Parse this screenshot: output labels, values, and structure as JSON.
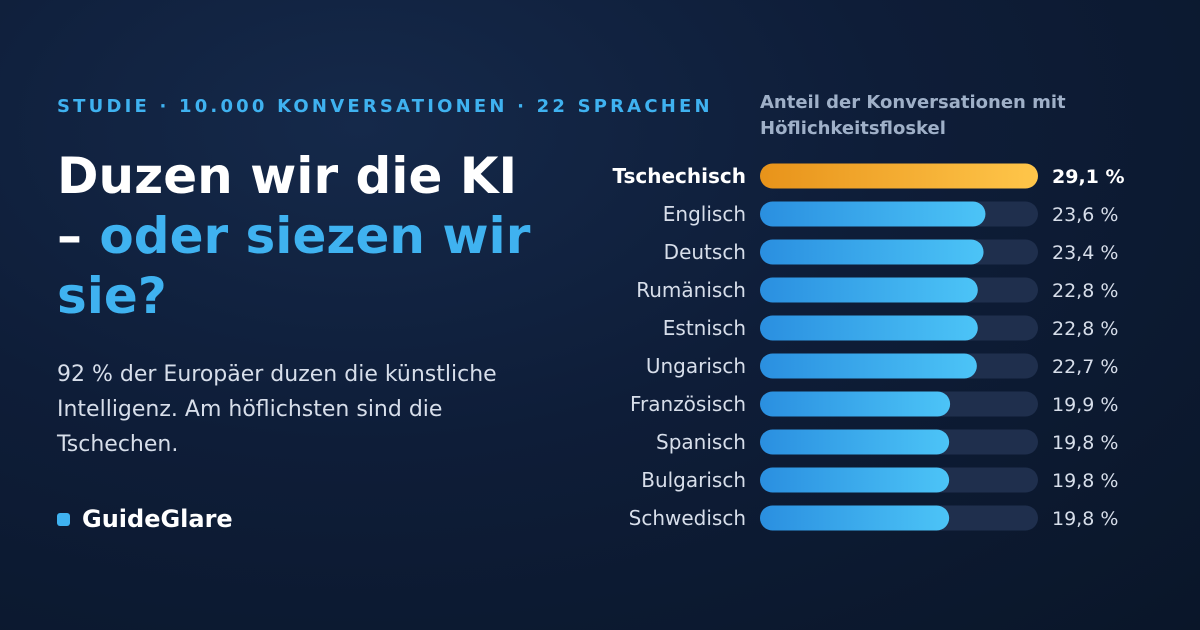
{
  "eyebrow": "STUDIE · 10.000 KONVERSATIONEN · 22 SPRACHEN",
  "headline": {
    "line1": "Duzen wir die KI",
    "dash": "– ",
    "accent": "oder siezen wir sie?"
  },
  "description": "92 % der Europäer duzen die künstliche Intelligenz. Am höflichsten sind die Tschechen.",
  "brand": {
    "name": "GuideGlare"
  },
  "colors": {
    "accent": "#3fb2f0",
    "bar_blue_start": "#2a8fe0",
    "bar_blue_end": "#4cc4f7",
    "bar_top_start": "#e8931a",
    "bar_top_end": "#ffc64a",
    "track": "#1f2f4d"
  },
  "chart_data": {
    "type": "bar",
    "orientation": "horizontal",
    "title": "Anteil der Konversationen mit Höflichkeitsfloskel",
    "categories": [
      "Tschechisch",
      "Englisch",
      "Deutsch",
      "Rumänisch",
      "Estnisch",
      "Ungarisch",
      "Französisch",
      "Spanisch",
      "Bulgarisch",
      "Schwedisch"
    ],
    "values": [
      29.1,
      23.6,
      23.4,
      22.8,
      22.8,
      22.7,
      19.9,
      19.8,
      19.8,
      19.8
    ],
    "value_labels": [
      "29,1 %",
      "23,6 %",
      "23,4 %",
      "22,8 %",
      "22,8 %",
      "22,7 %",
      "19,9 %",
      "19,8 %",
      "19,8 %",
      "19,8 %"
    ],
    "xlim": [
      0,
      29.1
    ],
    "highlight_index": 0,
    "grid": false,
    "legend": "none"
  }
}
